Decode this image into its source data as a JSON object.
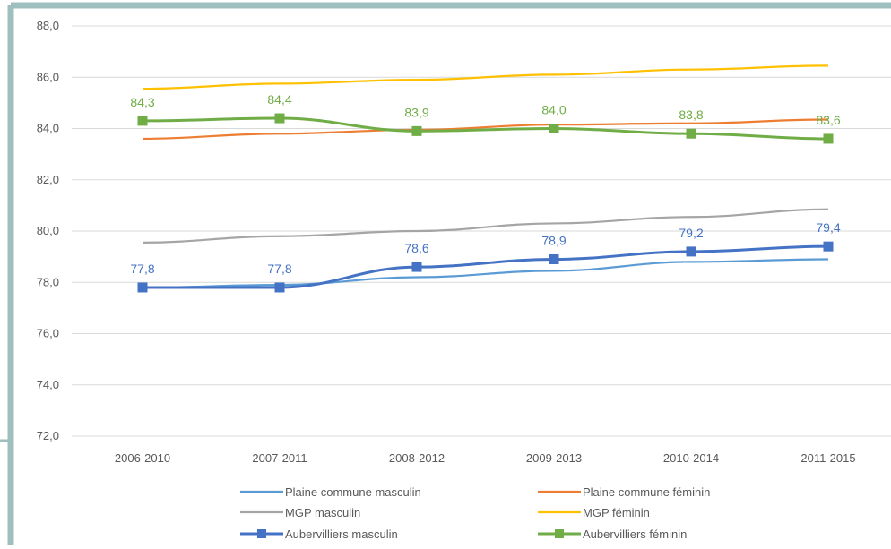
{
  "chart_data": {
    "type": "line",
    "categories": [
      "2006-2010",
      "2007-2011",
      "2008-2012",
      "2009-2013",
      "2010-2014",
      "2011-2015"
    ],
    "ylim": [
      72,
      88
    ],
    "yticks": [
      "72,0",
      "74,0",
      "76,0",
      "78,0",
      "80,0",
      "82,0",
      "84,0",
      "86,0",
      "88,0"
    ],
    "grid": true,
    "legend_position": "bottom",
    "series": [
      {
        "name": "Plaine commune masculin",
        "color": "#5b9bd5",
        "marker": "none",
        "values": [
          77.8,
          77.9,
          78.2,
          78.45,
          78.8,
          78.9
        ],
        "labels": []
      },
      {
        "name": "Plaine commune féminin",
        "color": "#ed7d31",
        "marker": "none",
        "values": [
          83.6,
          83.8,
          83.95,
          84.15,
          84.2,
          84.35
        ],
        "labels": []
      },
      {
        "name": "MGP masculin",
        "color": "#a5a5a5",
        "marker": "none",
        "values": [
          79.55,
          79.8,
          80.0,
          80.3,
          80.55,
          80.85
        ],
        "labels": []
      },
      {
        "name": "MGP féminin",
        "color": "#ffc000",
        "marker": "none",
        "values": [
          85.55,
          85.75,
          85.9,
          86.1,
          86.3,
          86.45
        ],
        "labels": []
      },
      {
        "name": "Aubervilliers masculin",
        "color": "#4472c4",
        "marker": "square",
        "values": [
          77.8,
          77.8,
          78.6,
          78.9,
          79.2,
          79.4
        ],
        "labels": [
          "77,8",
          "77,8",
          "78,6",
          "78,9",
          "79,2",
          "79,4"
        ]
      },
      {
        "name": "Aubervilliers féminin",
        "color": "#70ad47",
        "marker": "square",
        "values": [
          84.3,
          84.4,
          83.9,
          84.0,
          83.8,
          83.6
        ],
        "labels": [
          "84,3",
          "84,4",
          "83,9",
          "84,0",
          "83,8",
          "83,6"
        ]
      }
    ]
  },
  "colors": {
    "frame": "#9fbfbf",
    "grid": "#d9d9d9",
    "tick_text": "#595959"
  }
}
